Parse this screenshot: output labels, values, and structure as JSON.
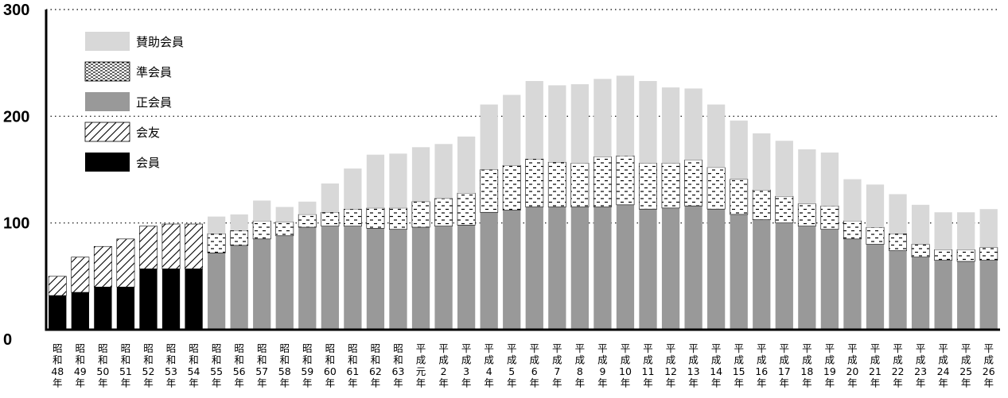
{
  "chart_data": {
    "type": "bar",
    "stacked": true,
    "title": "",
    "xlabel": "",
    "ylabel": "",
    "ylim": [
      0,
      300
    ],
    "yticks": [
      "0",
      "100",
      "200",
      "300"
    ],
    "grid": "dotted horizontal",
    "legend": "top-left",
    "categories": [
      [
        "昭",
        "和",
        "48",
        "年"
      ],
      [
        "昭",
        "和",
        "49",
        "年"
      ],
      [
        "昭",
        "和",
        "50",
        "年"
      ],
      [
        "昭",
        "和",
        "51",
        "年"
      ],
      [
        "昭",
        "和",
        "52",
        "年"
      ],
      [
        "昭",
        "和",
        "53",
        "年"
      ],
      [
        "昭",
        "和",
        "54",
        "年"
      ],
      [
        "昭",
        "和",
        "55",
        "年"
      ],
      [
        "昭",
        "和",
        "56",
        "年"
      ],
      [
        "昭",
        "和",
        "57",
        "年"
      ],
      [
        "昭",
        "和",
        "58",
        "年"
      ],
      [
        "昭",
        "和",
        "59",
        "年"
      ],
      [
        "昭",
        "和",
        "60",
        "年"
      ],
      [
        "昭",
        "和",
        "61",
        "年"
      ],
      [
        "昭",
        "和",
        "62",
        "年"
      ],
      [
        "昭",
        "和",
        "63",
        "年"
      ],
      [
        "平",
        "成",
        "元",
        "年"
      ],
      [
        "平",
        "成",
        "2",
        "年"
      ],
      [
        "平",
        "成",
        "3",
        "年"
      ],
      [
        "平",
        "成",
        "4",
        "年"
      ],
      [
        "平",
        "成",
        "5",
        "年"
      ],
      [
        "平",
        "成",
        "6",
        "年"
      ],
      [
        "平",
        "成",
        "7",
        "年"
      ],
      [
        "平",
        "成",
        "8",
        "年"
      ],
      [
        "平",
        "成",
        "9",
        "年"
      ],
      [
        "平",
        "成",
        "10",
        "年"
      ],
      [
        "平",
        "成",
        "11",
        "年"
      ],
      [
        "平",
        "成",
        "12",
        "年"
      ],
      [
        "平",
        "成",
        "13",
        "年"
      ],
      [
        "平",
        "成",
        "14",
        "年"
      ],
      [
        "平",
        "成",
        "15",
        "年"
      ],
      [
        "平",
        "成",
        "16",
        "年"
      ],
      [
        "平",
        "成",
        "17",
        "年"
      ],
      [
        "平",
        "成",
        "18",
        "年"
      ],
      [
        "平",
        "成",
        "19",
        "年"
      ],
      [
        "平",
        "成",
        "20",
        "年"
      ],
      [
        "平",
        "成",
        "21",
        "年"
      ],
      [
        "平",
        "成",
        "22",
        "年"
      ],
      [
        "平",
        "成",
        "23",
        "年"
      ],
      [
        "平",
        "成",
        "24",
        "年"
      ],
      [
        "平",
        "成",
        "25",
        "年"
      ],
      [
        "平",
        "成",
        "26",
        "年"
      ]
    ],
    "series": [
      {
        "name": "会員",
        "key": "member",
        "color": "#000000",
        "values": [
          32,
          35,
          40,
          40,
          57,
          57,
          57,
          0,
          0,
          0,
          0,
          0,
          0,
          0,
          0,
          0,
          0,
          0,
          0,
          0,
          0,
          0,
          0,
          0,
          0,
          0,
          0,
          0,
          0,
          0,
          0,
          0,
          0,
          0,
          0,
          0,
          0,
          0,
          0,
          0,
          0,
          0
        ]
      },
      {
        "name": "会友",
        "key": "associate_friend",
        "color": "#ffffff",
        "values": [
          18,
          33,
          38,
          45,
          40,
          42,
          42,
          0,
          0,
          0,
          0,
          0,
          0,
          0,
          0,
          0,
          0,
          0,
          0,
          0,
          0,
          0,
          0,
          0,
          0,
          0,
          0,
          0,
          0,
          0,
          0,
          0,
          0,
          0,
          0,
          0,
          0,
          0,
          0,
          0,
          0,
          0
        ]
      },
      {
        "name": "正会員",
        "key": "regular",
        "color": "#999999",
        "values": [
          0,
          0,
          0,
          0,
          0,
          0,
          0,
          72,
          79,
          85,
          88,
          96,
          97,
          97,
          95,
          94,
          96,
          97,
          98,
          110,
          112,
          115,
          115,
          115,
          115,
          117,
          113,
          114,
          116,
          113,
          108,
          103,
          100,
          97,
          94,
          85,
          80,
          74,
          68,
          65,
          64,
          65
        ]
      },
      {
        "name": "準会員",
        "key": "quasi",
        "color": "#ffffff",
        "values": [
          0,
          0,
          0,
          0,
          0,
          0,
          0,
          18,
          14,
          17,
          13,
          12,
          13,
          16,
          19,
          20,
          24,
          26,
          30,
          40,
          42,
          45,
          42,
          41,
          47,
          46,
          43,
          42,
          43,
          39,
          33,
          28,
          25,
          21,
          22,
          17,
          16,
          16,
          12,
          10,
          11,
          12
        ]
      },
      {
        "name": "賛助会員",
        "key": "supporting",
        "color": "#d8d8d8",
        "values": [
          0,
          0,
          0,
          0,
          0,
          0,
          0,
          16,
          15,
          19,
          14,
          12,
          27,
          38,
          50,
          51,
          51,
          51,
          53,
          61,
          66,
          73,
          72,
          74,
          73,
          75,
          77,
          71,
          67,
          59,
          55,
          53,
          52,
          51,
          50,
          39,
          40,
          37,
          37,
          35,
          35,
          36
        ]
      }
    ],
    "legend_order": [
      "supporting",
      "quasi",
      "regular",
      "associate_friend",
      "member"
    ]
  }
}
